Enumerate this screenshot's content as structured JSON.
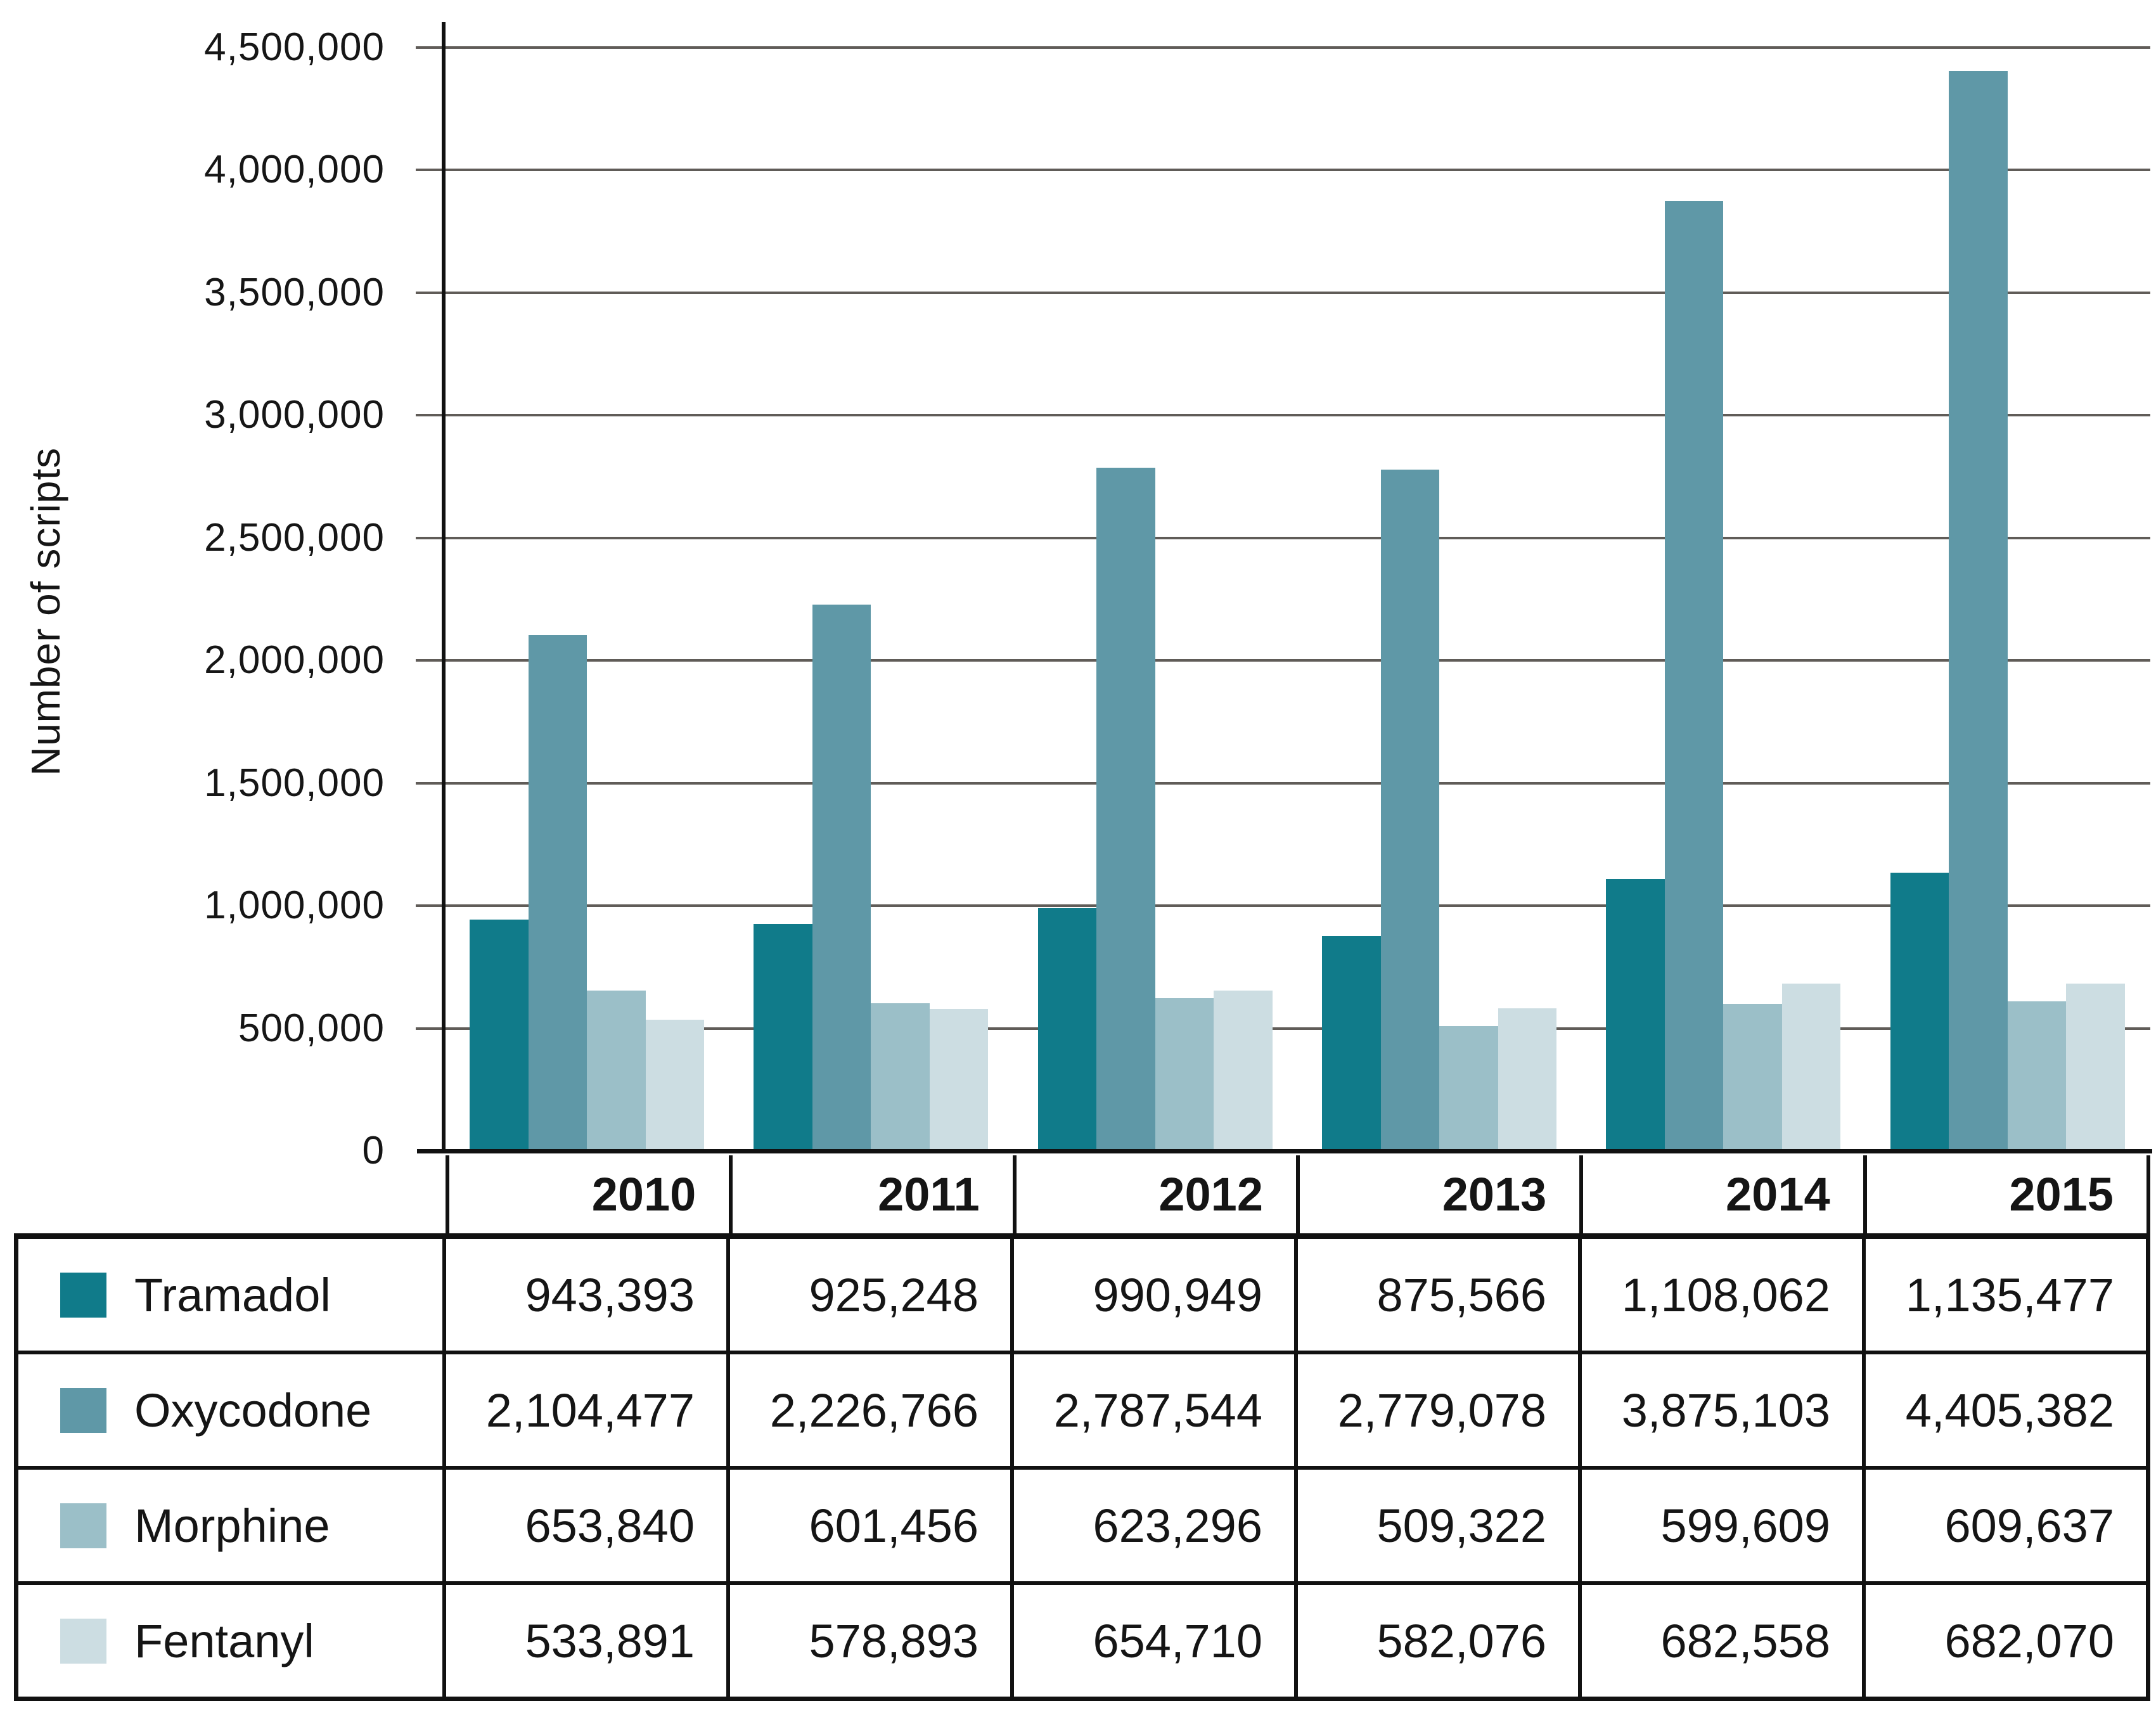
{
  "figure": {
    "y_axis_title": "Number of scripts"
  },
  "chart_data": {
    "type": "bar",
    "title": "",
    "categories": [
      "2010",
      "2011",
      "2012",
      "2013",
      "2014",
      "2015"
    ],
    "series": [
      {
        "name": "Tramadol",
        "color": "#107b8a",
        "values": [
          943393,
          925248,
          990949,
          875566,
          1108062,
          1135477
        ]
      },
      {
        "name": "Oxycodone",
        "color": "#5f98a7",
        "values": [
          2104477,
          2226766,
          2787544,
          2779078,
          3875103,
          4405382
        ]
      },
      {
        "name": "Morphine",
        "color": "#9bbfc8",
        "values": [
          653840,
          601456,
          623296,
          509322,
          599609,
          609637
        ]
      },
      {
        "name": "Fentanyl",
        "color": "#ccdde2",
        "values": [
          533891,
          578893,
          654710,
          582076,
          682558,
          682070
        ]
      }
    ],
    "xlabel": "",
    "ylabel": "Number of scripts",
    "ylim": [
      0,
      4500000
    ],
    "ytick_step": 500000,
    "ytick_labels": [
      "0",
      "500,000",
      "1,000,000",
      "1,500,000",
      "2,000,000",
      "2,500,000",
      "3,000,000",
      "3,500,000",
      "4,000,000",
      "4,500,000"
    ],
    "grid": true,
    "gridline_color": "#605c58",
    "axis_color": "#111111",
    "legend_position": "table-rows-left",
    "number_format": "comma"
  }
}
